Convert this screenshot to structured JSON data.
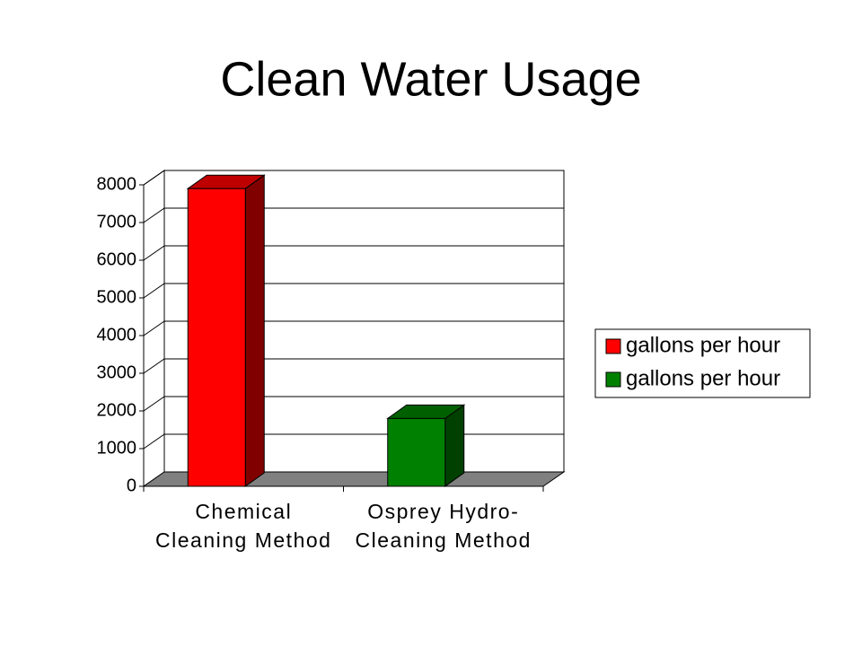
{
  "chart_data": {
    "type": "bar3d",
    "title": "Clean Water Usage",
    "categories": [
      [
        "Chemical",
        "Cleaning Method"
      ],
      [
        "Osprey Hydro-",
        "Cleaning Method"
      ]
    ],
    "series": [
      {
        "name": "gallons per hour",
        "color": "#ff0000",
        "values": [
          7900,
          null
        ]
      },
      {
        "name": "gallons per hour",
        "color": "#008000",
        "values": [
          null,
          1800
        ]
      }
    ],
    "ylim": [
      0,
      8000
    ],
    "yticks": [
      0,
      1000,
      2000,
      3000,
      4000,
      5000,
      6000,
      7000,
      8000
    ],
    "grid": true,
    "legend": "right"
  }
}
